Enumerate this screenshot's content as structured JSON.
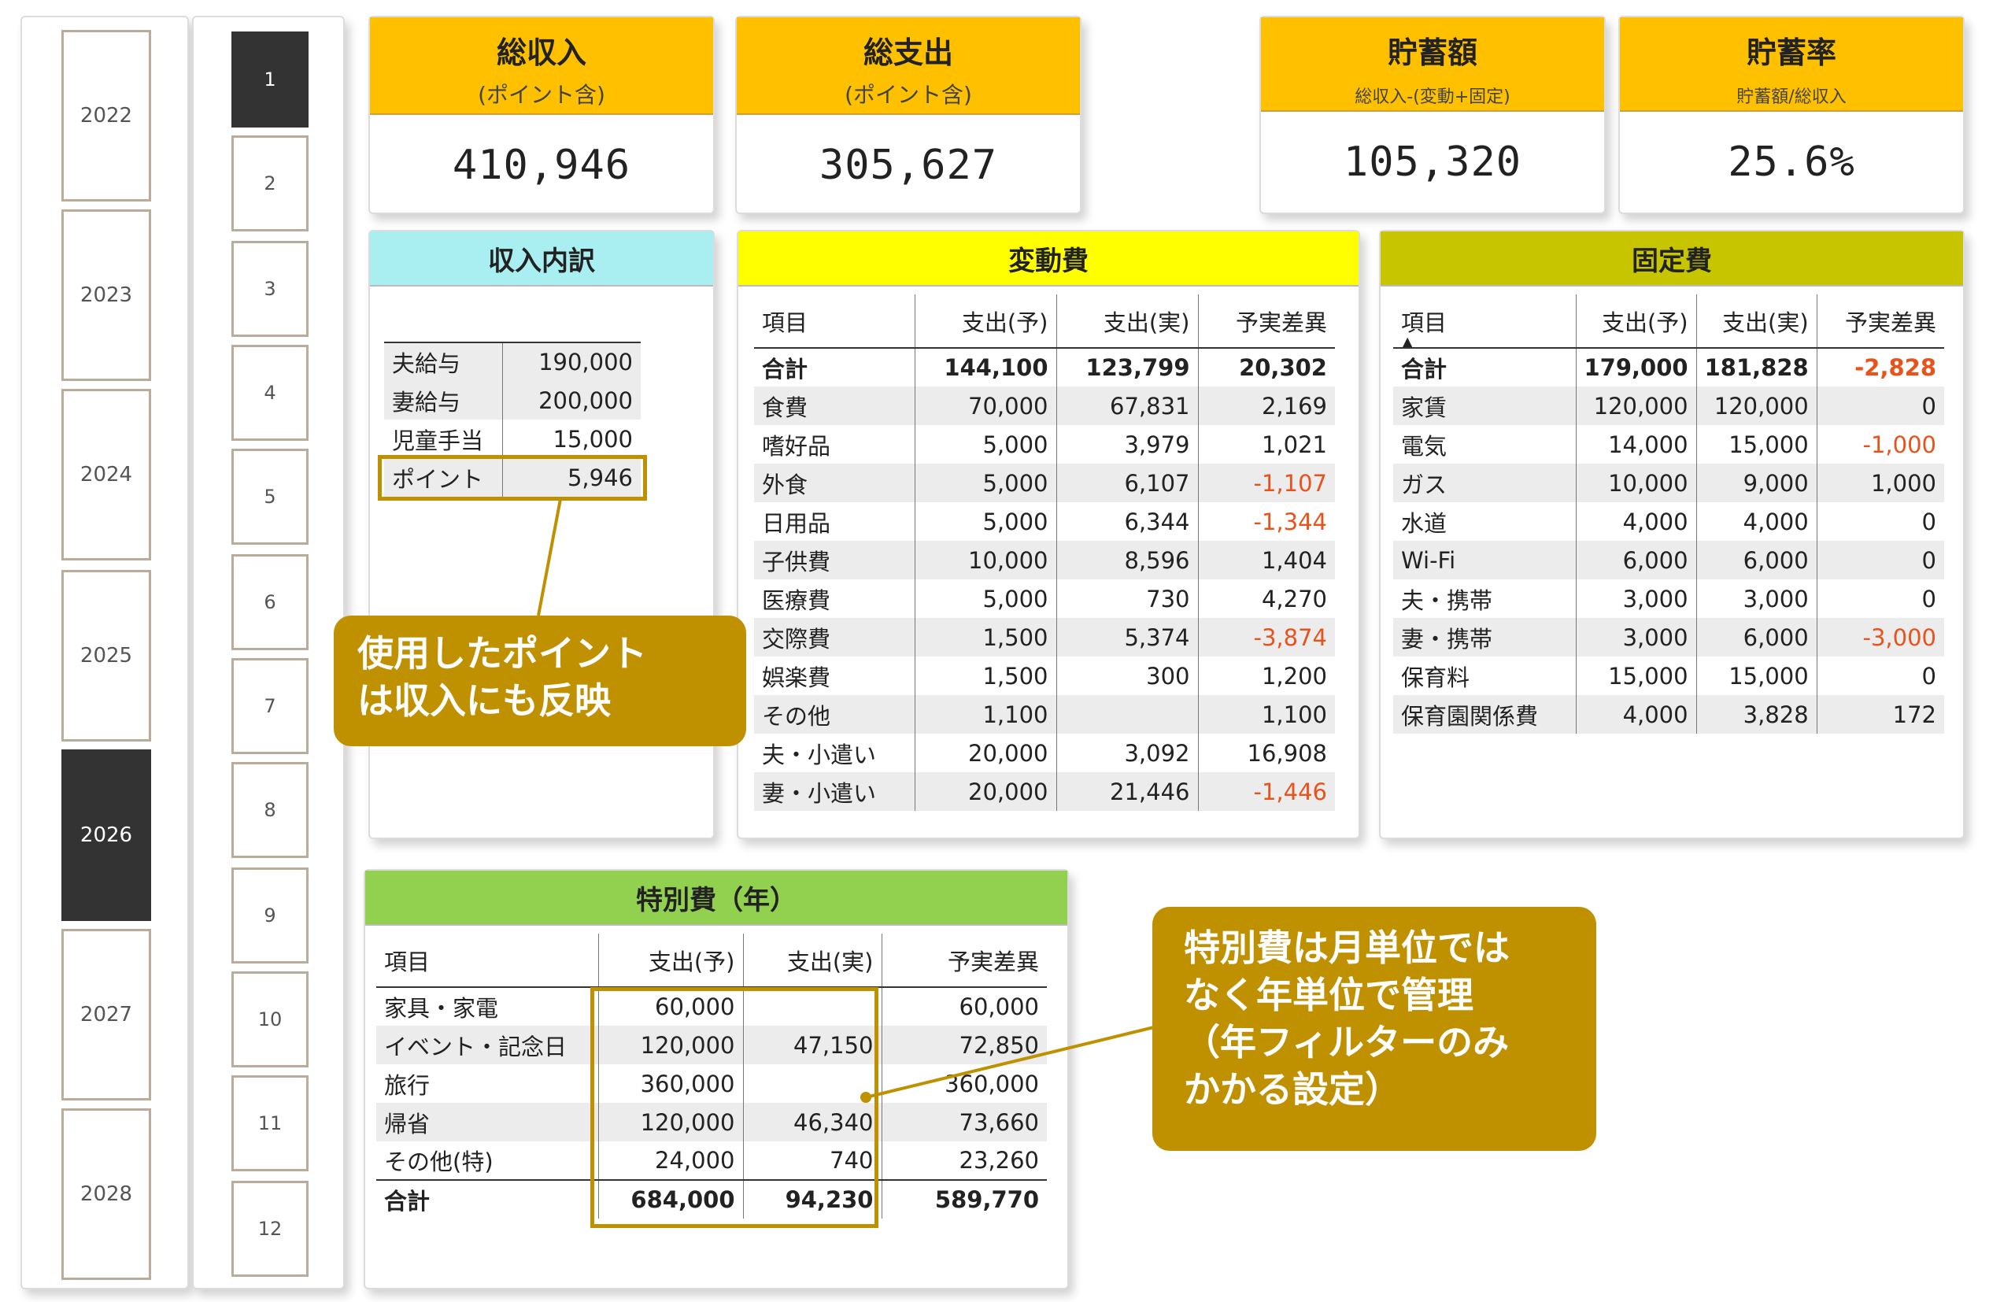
{
  "years": [
    "2022",
    "2023",
    "2024",
    "2025",
    "2026",
    "2027",
    "2028"
  ],
  "selected_year": "2026",
  "months": [
    "1",
    "2",
    "3",
    "4",
    "5",
    "6",
    "7",
    "8",
    "9",
    "10",
    "11",
    "12"
  ],
  "selected_month": "1",
  "kpis": {
    "income": {
      "title": "総収入",
      "sub": "(ポイント含)",
      "value": "410,946"
    },
    "expense": {
      "title": "総支出",
      "sub": "(ポイント含)",
      "value": "305,627"
    },
    "savings": {
      "title": "貯蓄額",
      "sub": "総収入-(変動+固定)",
      "value": "105,320"
    },
    "rate": {
      "title": "貯蓄率",
      "sub": "貯蓄額/総収入",
      "value": "25.6%"
    }
  },
  "income_breakdown": {
    "title": "収入内訳",
    "rows": [
      {
        "label": "夫給与",
        "value": "190,000"
      },
      {
        "label": "妻給与",
        "value": "200,000"
      },
      {
        "label": "児童手当",
        "value": "15,000"
      },
      {
        "label": "ポイント",
        "value": "5,946"
      }
    ]
  },
  "variable": {
    "title": "変動費",
    "headers": [
      "項目",
      "支出(予)",
      "支出(実)",
      "予実差異"
    ],
    "rows": [
      {
        "item": "合計",
        "plan": "144,100",
        "actual": "123,799",
        "diff": "20,302"
      },
      {
        "item": "食費",
        "plan": "70,000",
        "actual": "67,831",
        "diff": "2,169"
      },
      {
        "item": "嗜好品",
        "plan": "5,000",
        "actual": "3,979",
        "diff": "1,021"
      },
      {
        "item": "外食",
        "plan": "5,000",
        "actual": "6,107",
        "diff": "-1,107"
      },
      {
        "item": "日用品",
        "plan": "5,000",
        "actual": "6,344",
        "diff": "-1,344"
      },
      {
        "item": "子供費",
        "plan": "10,000",
        "actual": "8,596",
        "diff": "1,404"
      },
      {
        "item": "医療費",
        "plan": "5,000",
        "actual": "730",
        "diff": "4,270"
      },
      {
        "item": "交際費",
        "plan": "1,500",
        "actual": "5,374",
        "diff": "-3,874"
      },
      {
        "item": "娯楽費",
        "plan": "1,500",
        "actual": "300",
        "diff": "1,200"
      },
      {
        "item": "その他",
        "plan": "1,100",
        "actual": "",
        "diff": "1,100"
      },
      {
        "item": "夫・小遣い",
        "plan": "20,000",
        "actual": "3,092",
        "diff": "16,908"
      },
      {
        "item": "妻・小遣い",
        "plan": "20,000",
        "actual": "21,446",
        "diff": "-1,446"
      }
    ]
  },
  "fixed": {
    "title": "固定費",
    "headers": [
      "項目",
      "支出(予)",
      "支出(実)",
      "予実差異"
    ],
    "sort_icon": "▲",
    "rows": [
      {
        "item": "合計",
        "plan": "179,000",
        "actual": "181,828",
        "diff": "-2,828"
      },
      {
        "item": "家賃",
        "plan": "120,000",
        "actual": "120,000",
        "diff": "0"
      },
      {
        "item": "電気",
        "plan": "14,000",
        "actual": "15,000",
        "diff": "-1,000"
      },
      {
        "item": "ガス",
        "plan": "10,000",
        "actual": "9,000",
        "diff": "1,000"
      },
      {
        "item": "水道",
        "plan": "4,000",
        "actual": "4,000",
        "diff": "0"
      },
      {
        "item": "Wi-Fi",
        "plan": "6,000",
        "actual": "6,000",
        "diff": "0"
      },
      {
        "item": "夫・携帯",
        "plan": "3,000",
        "actual": "3,000",
        "diff": "0"
      },
      {
        "item": "妻・携帯",
        "plan": "3,000",
        "actual": "6,000",
        "diff": "-3,000"
      },
      {
        "item": "保育料",
        "plan": "15,000",
        "actual": "15,000",
        "diff": "0"
      },
      {
        "item": "保育園関係費",
        "plan": "4,000",
        "actual": "3,828",
        "diff": "172"
      }
    ]
  },
  "special": {
    "title": "特別費（年）",
    "headers": [
      "項目",
      "支出(予)",
      "支出(実)",
      "予実差異"
    ],
    "rows": [
      {
        "item": "家具・家電",
        "plan": "60,000",
        "actual": "",
        "diff": "60,000"
      },
      {
        "item": "イベント・記念日",
        "plan": "120,000",
        "actual": "47,150",
        "diff": "72,850"
      },
      {
        "item": "旅行",
        "plan": "360,000",
        "actual": "",
        "diff": "360,000"
      },
      {
        "item": "帰省",
        "plan": "120,000",
        "actual": "46,340",
        "diff": "73,660"
      },
      {
        "item": "その他(特)",
        "plan": "24,000",
        "actual": "740",
        "diff": "23,260"
      }
    ],
    "total": {
      "item": "合計",
      "plan": "684,000",
      "actual": "94,230",
      "diff": "589,770"
    }
  },
  "callouts": {
    "points": [
      "使用したポイント",
      "は収入にも反映"
    ],
    "special": [
      "特別費は月単位では",
      "なく年単位で管理",
      "（年フィルターのみ",
      "かかる設定）"
    ]
  },
  "colors": {
    "kpi_header": "#ffc000",
    "income_header": "#a9eef0",
    "variable_header": "#ffff00",
    "fixed_header": "#c7c400",
    "special_header": "#92d050",
    "callout": "#bf9000",
    "negative": "#e8531c",
    "selected": "#333333"
  }
}
